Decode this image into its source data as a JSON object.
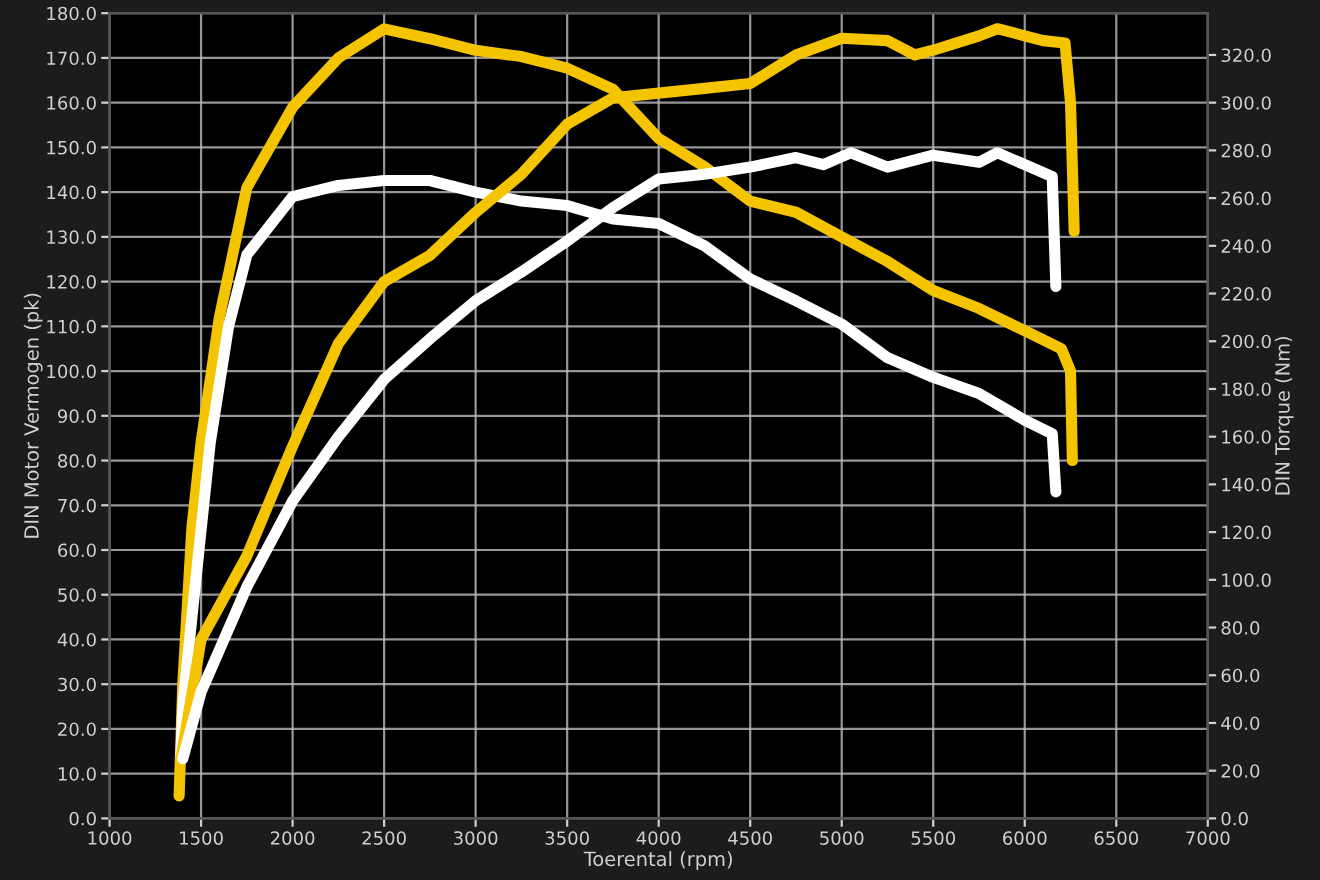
{
  "chart_data": {
    "type": "line",
    "xlabel": "Toerental (rpm)",
    "ylabel": "DIN Motor Vermogen (pk)",
    "y2label": "DIN Torque (Nm)",
    "xlim": [
      1000,
      7000
    ],
    "xticks": [
      1000,
      1500,
      2000,
      2500,
      3000,
      3500,
      4000,
      4500,
      5000,
      5500,
      6000,
      6500,
      7000
    ],
    "ylim": [
      0,
      180
    ],
    "yticks": [
      {
        "value": 0,
        "label": "0.0"
      },
      {
        "value": 10,
        "label": "10.0"
      },
      {
        "value": 20,
        "label": "20.0"
      },
      {
        "value": 30,
        "label": "30.0"
      },
      {
        "value": 40,
        "label": "40.0"
      },
      {
        "value": 50,
        "label": "50.0"
      },
      {
        "value": 60,
        "label": "60.0"
      },
      {
        "value": 70,
        "label": "70.0"
      },
      {
        "value": 80,
        "label": "80.0"
      },
      {
        "value": 90,
        "label": "90.0"
      },
      {
        "value": 100,
        "label": "100.0"
      },
      {
        "value": 110,
        "label": "110.0"
      },
      {
        "value": 120,
        "label": "120.0"
      },
      {
        "value": 130,
        "label": "130.0"
      },
      {
        "value": 140,
        "label": "140.0"
      },
      {
        "value": 150,
        "label": "150.0"
      },
      {
        "value": 160,
        "label": "160.0"
      },
      {
        "value": 170,
        "label": "170.0"
      },
      {
        "value": 180,
        "label": "180.0"
      }
    ],
    "y2lim": [
      0,
      337.5
    ],
    "y2ticks": [
      {
        "value": 0,
        "label": "0.0"
      },
      {
        "value": 20,
        "label": "20.0"
      },
      {
        "value": 40,
        "label": "40.0"
      },
      {
        "value": 60,
        "label": "60.0"
      },
      {
        "value": 80,
        "label": "80.0"
      },
      {
        "value": 100,
        "label": "100.0"
      },
      {
        "value": 120,
        "label": "120.0"
      },
      {
        "value": 140,
        "label": "140.0"
      },
      {
        "value": 160,
        "label": "160.0"
      },
      {
        "value": 180,
        "label": "180.0"
      },
      {
        "value": 200,
        "label": "200.0"
      },
      {
        "value": 220,
        "label": "220.0"
      },
      {
        "value": 240,
        "label": "240.0"
      },
      {
        "value": 260,
        "label": "260.0"
      },
      {
        "value": 280,
        "label": "280.0"
      },
      {
        "value": 300,
        "label": "300.0"
      },
      {
        "value": 320,
        "label": "320.0"
      }
    ],
    "grid": true,
    "line_style": "solid",
    "marker": "none",
    "series": [
      {
        "color": "#f5c400",
        "x": [
          1380,
          1400,
          1450,
          1500,
          1600,
          1750,
          2000,
          2250,
          2500,
          2750,
          3000,
          3250,
          3500,
          3750,
          4000,
          4250,
          4500,
          4750,
          5000,
          5250,
          5500,
          5750,
          6000,
          6200,
          6250,
          6260
        ],
        "values": [
          5,
          30,
          65,
          84,
          112,
          141,
          159,
          170,
          176.5,
          174.3,
          171.7,
          170.3,
          167.7,
          163,
          152,
          145.7,
          138,
          135.5,
          130,
          124.5,
          118,
          114,
          109,
          105,
          100,
          80
        ]
      },
      {
        "color": "#ffffff",
        "x": [
          1390,
          1400,
          1450,
          1550,
          1650,
          1750,
          2000,
          2250,
          2500,
          2750,
          3000,
          3250,
          3500,
          3750,
          4000,
          4250,
          4500,
          4750,
          5000,
          5250,
          5500,
          5750,
          6000,
          6150,
          6170
        ],
        "values": [
          14,
          25,
          45,
          84,
          110,
          126,
          139,
          141.5,
          142.6,
          142.6,
          140,
          138,
          137,
          134,
          133,
          128,
          120.6,
          115.7,
          110.5,
          103,
          98.6,
          95,
          89,
          86,
          73
        ]
      },
      {
        "color": "#f5c400",
        "axis": "y2",
        "x": [
          1390,
          1500,
          1750,
          2000,
          2250,
          2500,
          2750,
          3000,
          3250,
          3500,
          3750,
          4000,
          4250,
          4500,
          4750,
          5000,
          5250,
          5400,
          5500,
          5750,
          5850,
          6000,
          6100,
          6220,
          6250,
          6270
        ],
        "values": [
          25,
          75,
          110,
          156,
          199,
          225,
          236,
          254,
          270,
          291,
          302,
          304,
          306,
          308,
          320,
          327,
          326,
          320,
          322,
          328,
          331,
          328,
          326,
          325,
          300,
          246
        ]
      },
      {
        "color": "#ffffff",
        "axis": "y2",
        "x": [
          1400,
          1500,
          1750,
          2000,
          2250,
          2500,
          2750,
          3000,
          3250,
          3500,
          3750,
          4000,
          4250,
          4500,
          4750,
          4900,
          5050,
          5250,
          5500,
          5750,
          5850,
          6000,
          6150,
          6170
        ],
        "values": [
          25,
          53,
          97,
          133,
          160,
          184,
          201,
          217,
          229,
          242,
          256,
          268,
          270,
          273,
          277,
          274,
          279,
          273,
          278,
          275,
          279,
          274,
          269,
          223
        ]
      }
    ]
  }
}
